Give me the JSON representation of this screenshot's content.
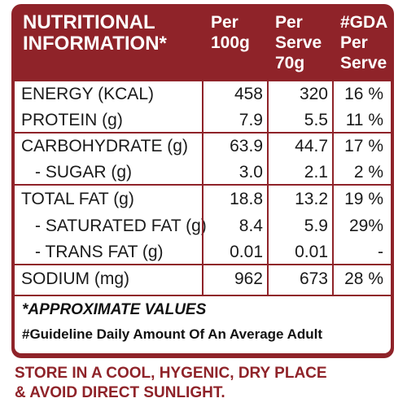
{
  "header": {
    "title": "NUTRITIONAL\nINFORMATION*",
    "col_per_100g": "Per\n100g",
    "col_per_serve": "Per\nServe\n70g",
    "col_gda": "#GDA\nPer\nServe"
  },
  "rows": [
    {
      "label": "ENERGY (KCAL)",
      "per100": "458",
      "perServe": "320",
      "gda": "16 %"
    },
    {
      "label": "PROTEIN (g)",
      "per100": "7.9",
      "perServe": "5.5",
      "gda": "11 %"
    },
    {
      "label": "CARBOHYDRATE (g)",
      "per100": "63.9",
      "perServe": "44.7",
      "gda": "17 %"
    },
    {
      "label": "- SUGAR (g)",
      "per100": "3.0",
      "perServe": "2.1",
      "gda": "2 %"
    },
    {
      "label": "TOTAL FAT (g)",
      "per100": "18.8",
      "perServe": "13.2",
      "gda": "19 %"
    },
    {
      "label": "- SATURATED FAT (g)",
      "per100": "8.4",
      "perServe": "5.9",
      "gda": "29%"
    },
    {
      "label": "- TRANS FAT (g)",
      "per100": "0.01",
      "perServe": "0.01",
      "gda": "-"
    },
    {
      "label": "SODIUM (mg)",
      "per100": "962",
      "perServe": "673",
      "gda": "28 %"
    }
  ],
  "notes": {
    "approx": "*APPROXIMATE VALUES",
    "gda_def": "#Guideline Daily Amount Of An Average Adult"
  },
  "storage": "STORE IN A COOL, HYGENIC, DRY PLACE\n& AVOID DIRECT SUNLIGHT.",
  "colors": {
    "brand": "#8f2329"
  }
}
